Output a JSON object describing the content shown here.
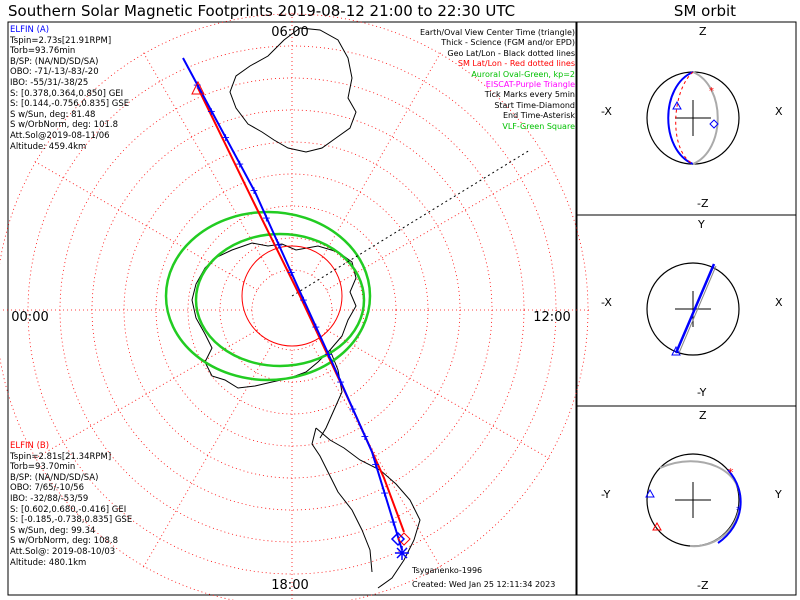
{
  "title": "Southern Solar Magnetic Footprints 2019-08-12 21:00 to 22:30 UTC",
  "sm_title": "SM orbit",
  "map": {
    "mlt_labels": {
      "top": "06:00",
      "left": "00:00",
      "right": "12:00",
      "bottom": "18:00"
    },
    "legend": [
      {
        "text": "Earth/Oval View Center Time (triangle)",
        "color": "#000000"
      },
      {
        "text": "Thick - Science (FGM and/or EPD)",
        "color": "#000000"
      },
      {
        "text": "Geo Lat/Lon - Black dotted lines",
        "color": "#000000"
      },
      {
        "text": "SM Lat/Lon - Red dotted lines",
        "color": "#ff0000"
      },
      {
        "text": "Auroral Oval-Green, kp=2",
        "color": "#00c000"
      },
      {
        "text": "EISCAT-Purple Triangle",
        "color": "#ff00ff"
      },
      {
        "text": "Tick Marks every 5min",
        "color": "#000000"
      },
      {
        "text": "Start Time-Diamond",
        "color": "#000000"
      },
      {
        "text": "End Time-Asterisk",
        "color": "#000000"
      },
      {
        "text": "VLF-Green Square",
        "color": "#00c000"
      }
    ],
    "credit": "Tsyganenko-1996",
    "created": "Created: Wed Jan 25 12:11:34 2023"
  },
  "elfin_a": {
    "title": "ELFIN (A)",
    "color": "#0000ff",
    "lines": [
      "Tspin=2.73s[21.91RPM]",
      "Torb=93.76min",
      "B/SP: (NA/ND/SD/SA)",
      "OBO: -71/-13/-83/-20",
      "IBO: -55/31/-38/25",
      "S: [0.378,0.364,0.850] GEI",
      "S: [0.144,-0.756,0.835] GSE",
      "S w/Sun, deg: 81.48",
      "S w/OrbNorm, deg: 101.8",
      "Att.Sol@2019-08-11/06",
      "Altitude: 459.4km"
    ]
  },
  "elfin_b": {
    "title": "ELFIN (B)",
    "color": "#ff0000",
    "lines": [
      "Tspin=2.81s[21.34RPM]",
      "Torb=93.70min",
      "B/SP: (NA/ND/SD/SA)",
      "OBO: 7/65/-10/56",
      "IBO: -32/88/-53/59",
      "S: [0.602,0.680,-0.416] GEI",
      "S: [-0.185,-0.738,0.835] GSE",
      "S w/Sun, deg: 99.34",
      "S w/OrbNorm, deg: 108.8",
      "Att.Sol@: 2019-08-10/03",
      "Altitude: 480.1km"
    ]
  },
  "sm_orbit": {
    "panels": [
      {
        "top": "Z",
        "bottom": "-Z",
        "left": "-X",
        "right": "X"
      },
      {
        "top": "Y",
        "bottom": "-Y",
        "left": "-X",
        "right": "X"
      },
      {
        "top": "Z",
        "bottom": "-Z",
        "left": "-Y",
        "right": "Y"
      }
    ]
  },
  "chart_data": {
    "type": "scatter",
    "title": "Southern Solar Magnetic Footprints 2019-08-12 21:00 to 22:30 UTC",
    "projection": "polar, southern hemisphere, SM coordinates",
    "mlt_axis_labels": [
      "00:00",
      "06:00",
      "12:00",
      "18:00"
    ],
    "auroral_oval_kp": 2,
    "series": [
      {
        "name": "ELFIN (A)",
        "color": "#0000ff"
      },
      {
        "name": "ELFIN (B)",
        "color": "#ff0000"
      }
    ],
    "grid": true,
    "legend_position": "top-right"
  }
}
